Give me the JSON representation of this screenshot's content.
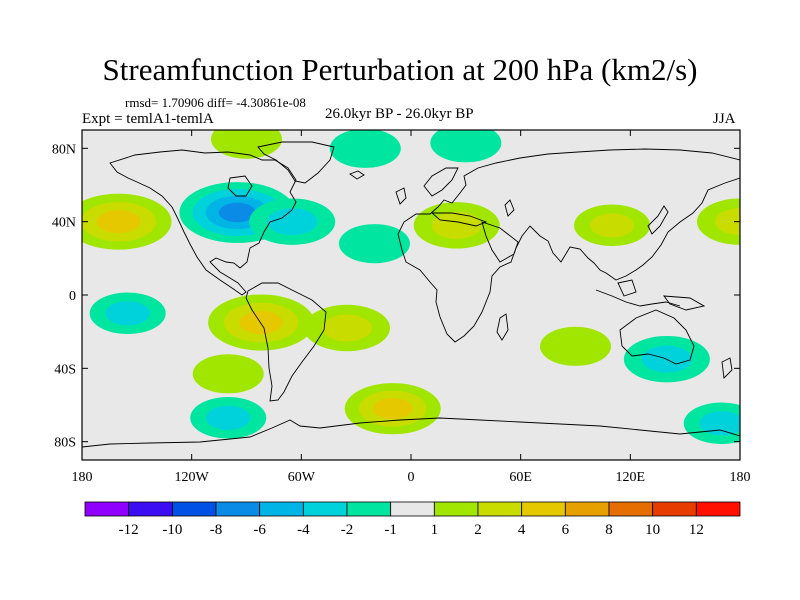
{
  "title": "Streamfunction Perturbation at 200 hPa (km2/s)",
  "stats": "rmsd= 1.70906 diff= -4.30861e-08",
  "expt": "Expt = temlA1-temlA",
  "period": "26.0kyr BP - 26.0kyr BP",
  "season": "JJA",
  "chart_data": {
    "type": "heatmap",
    "title": "Streamfunction Perturbation at 200 hPa (km2/s)",
    "variable": "streamfunction perturbation",
    "units": "km2/s",
    "level_hPa": 200,
    "xlim": [
      -180,
      180
    ],
    "ylim": [
      -90,
      90
    ],
    "x_ticks": [
      {
        "value": -180,
        "label": "180"
      },
      {
        "value": -120,
        "label": "120W"
      },
      {
        "value": -60,
        "label": "60W"
      },
      {
        "value": 0,
        "label": "0"
      },
      {
        "value": 60,
        "label": "60E"
      },
      {
        "value": 120,
        "label": "120E"
      },
      {
        "value": 180,
        "label": "180"
      }
    ],
    "y_ticks": [
      {
        "value": 80,
        "label": "80N"
      },
      {
        "value": 40,
        "label": "40N"
      },
      {
        "value": 0,
        "label": "0"
      },
      {
        "value": -40,
        "label": "40S"
      },
      {
        "value": -80,
        "label": "80S"
      }
    ],
    "colorbar": {
      "labels": [
        "-12",
        "-10",
        "-8",
        "-6",
        "-4",
        "-2",
        "-1",
        "1",
        "2",
        "4",
        "6",
        "8",
        "10",
        "12"
      ],
      "colors": [
        "#8f00ff",
        "#3c0cf2",
        "#0050e6",
        "#0a8ce6",
        "#00b4e6",
        "#00d2dc",
        "#00e6a0",
        "#e8e8e8",
        "#a0e600",
        "#c8dc00",
        "#e6c800",
        "#e6a000",
        "#e66e00",
        "#e63c00",
        "#ff1000"
      ]
    },
    "anomalies": [
      {
        "lon": -160,
        "lat": 40,
        "value": 5
      },
      {
        "lon": -95,
        "lat": 45,
        "value": -6
      },
      {
        "lon": -65,
        "lat": 40,
        "value": -3
      },
      {
        "lon": -90,
        "lat": 85,
        "value": 1.5
      },
      {
        "lon": -25,
        "lat": 80,
        "value": -1.5
      },
      {
        "lon": 30,
        "lat": 83,
        "value": -1.5
      },
      {
        "lon": -20,
        "lat": 28,
        "value": -1.5
      },
      {
        "lon": 25,
        "lat": 38,
        "value": 3
      },
      {
        "lon": 110,
        "lat": 38,
        "value": 2
      },
      {
        "lon": 180,
        "lat": 40,
        "value": 3
      },
      {
        "lon": -155,
        "lat": -10,
        "value": -2
      },
      {
        "lon": -82,
        "lat": -15,
        "value": 5
      },
      {
        "lon": -35,
        "lat": -18,
        "value": 3
      },
      {
        "lon": -100,
        "lat": -43,
        "value": 1.5
      },
      {
        "lon": 90,
        "lat": -28,
        "value": 1.5
      },
      {
        "lon": 140,
        "lat": -35,
        "value": -3
      },
      {
        "lon": -100,
        "lat": -67,
        "value": -2
      },
      {
        "lon": -10,
        "lat": -62,
        "value": 4
      },
      {
        "lon": 170,
        "lat": -70,
        "value": -2
      }
    ]
  }
}
